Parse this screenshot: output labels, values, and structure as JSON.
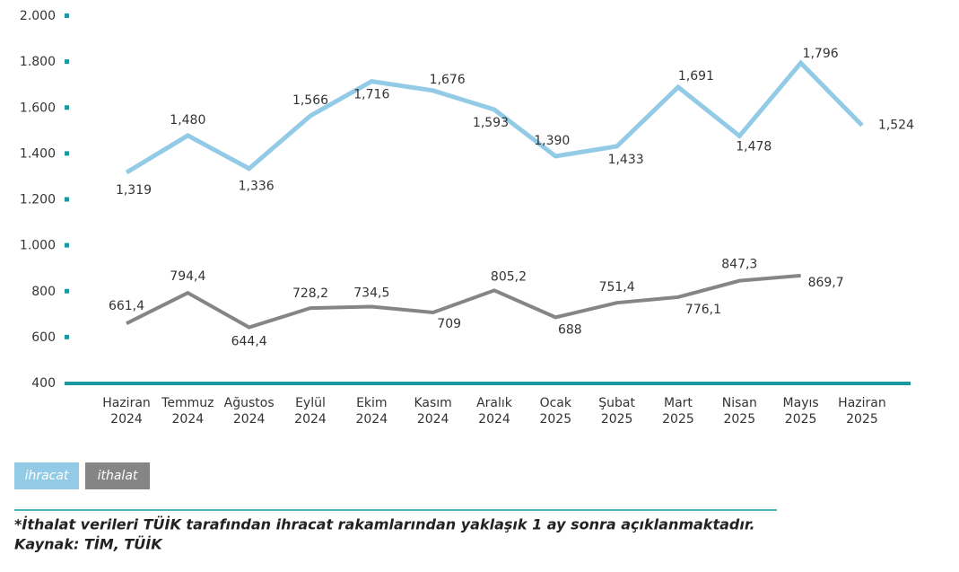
{
  "chart_data": {
    "type": "line",
    "categories": [
      "Haziran 2024",
      "Temmuz 2024",
      "Ağustos 2024",
      "Eylül 2024",
      "Ekim 2024",
      "Kasım 2024",
      "Aralık 2024",
      "Ocak 2025",
      "Şubat 2025",
      "Mart 2025",
      "Nisan 2025",
      "Mayıs 2025",
      "Haziran 2025"
    ],
    "series": [
      {
        "name": "ihracat",
        "color": "#93cbe6",
        "values": [
          1319,
          1480,
          1336,
          1566,
          1716,
          1676,
          1593,
          1390,
          1433,
          1691,
          1478,
          1796,
          1524
        ],
        "value_labels": [
          "1,319",
          "1,480",
          "1,336",
          "1,566",
          "1,716",
          "1,676",
          "1,593",
          "1,390",
          "1,433",
          "1,691",
          "1,478",
          "1,796",
          "1,524"
        ]
      },
      {
        "name": "ithalat",
        "color": "#858585",
        "values": [
          661.4,
          794.4,
          644.4,
          728.2,
          734.5,
          709,
          805.2,
          688,
          751.4,
          776.1,
          847.3,
          869.7,
          null
        ],
        "value_labels": [
          "661,4",
          "794,4",
          "644,4",
          "728,2",
          "734,5",
          "709",
          "805,2",
          "688",
          "751,4",
          "776,1",
          "847,3",
          "869,7",
          null
        ]
      }
    ],
    "ylim": [
      400,
      2000
    ],
    "yticks": [
      400,
      600,
      800,
      {
        "value": 1000,
        "label": "1.000"
      },
      {
        "value": 1200,
        "label": "1.200"
      },
      {
        "value": 1400,
        "label": "1.400"
      },
      {
        "value": 1600,
        "label": "1.600"
      },
      {
        "value": 1800,
        "label": "1.800"
      },
      {
        "value": 2000,
        "label": "2.000"
      }
    ],
    "footnote": "*İthalat verileri TÜİK tarafından ihracat rakamlarından yaklaşık 1 ay sonra açıklanmaktadır.",
    "source": "Kaynak: TİM, TÜİK"
  }
}
